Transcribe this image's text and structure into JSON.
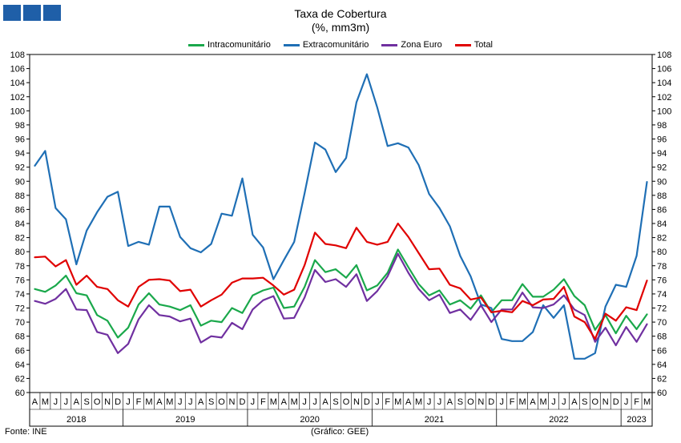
{
  "colors": {
    "logo": "#1f5fa8"
  },
  "chart_data": {
    "type": "line",
    "title": "Taxa de Cobertura",
    "subtitle": "(%, mm3m)",
    "source": "Fonte: INE",
    "credit": "(Gráfico: GEE)",
    "ylim": [
      60,
      108
    ],
    "yticks": [
      60,
      62,
      64,
      66,
      68,
      70,
      72,
      74,
      76,
      78,
      80,
      82,
      84,
      86,
      88,
      90,
      92,
      94,
      96,
      98,
      100,
      102,
      104,
      106,
      108
    ],
    "grid": false,
    "legend": "top-center",
    "months": [
      "A",
      "M",
      "J",
      "J",
      "A",
      "S",
      "O",
      "N",
      "D",
      "J",
      "F",
      "M",
      "A",
      "M",
      "J",
      "J",
      "A",
      "S",
      "O",
      "N",
      "D",
      "J",
      "F",
      "M",
      "A",
      "M",
      "J",
      "J",
      "A",
      "S",
      "O",
      "N",
      "D",
      "J",
      "F",
      "M",
      "A",
      "M",
      "J",
      "J",
      "A",
      "S",
      "O",
      "N",
      "D",
      "J",
      "F",
      "M",
      "A",
      "M",
      "J",
      "J",
      "A",
      "S",
      "O",
      "N",
      "D",
      "J",
      "F",
      "M"
    ],
    "years": [
      {
        "label": "2018",
        "start": 0,
        "end": 8
      },
      {
        "label": "2019",
        "start": 9,
        "end": 20
      },
      {
        "label": "2020",
        "start": 21,
        "end": 32
      },
      {
        "label": "2021",
        "start": 33,
        "end": 44
      },
      {
        "label": "2022",
        "start": 45,
        "end": 56
      },
      {
        "label": "2023",
        "start": 57,
        "end": 59
      }
    ],
    "series": [
      {
        "name": "Intracomunitário",
        "color": "#1aa84b",
        "values": [
          74.7,
          74.3,
          75.2,
          76.6,
          74.1,
          73.8,
          71.0,
          70.2,
          67.8,
          69.2,
          72.5,
          74.1,
          72.5,
          72.2,
          71.7,
          72.4,
          69.5,
          70.2,
          70.0,
          72.0,
          71.3,
          73.8,
          74.5,
          74.9,
          72.0,
          72.2,
          75.0,
          78.8,
          77.1,
          77.5,
          76.3,
          78.1,
          74.5,
          75.2,
          77.0,
          80.3,
          77.8,
          75.4,
          73.8,
          74.5,
          72.5,
          73.1,
          71.9,
          73.8,
          71.4,
          73.1,
          73.1,
          75.4,
          73.6,
          73.6,
          74.6,
          76.1,
          73.7,
          72.4,
          68.9,
          71.0,
          68.4,
          70.9,
          69.0,
          71.1
        ]
      },
      {
        "name": "Extracomunitário",
        "color": "#1f6fb5",
        "values": [
          92.2,
          94.3,
          86.2,
          84.6,
          78.2,
          83.0,
          85.6,
          87.8,
          88.5,
          80.8,
          81.4,
          81.0,
          86.4,
          86.4,
          82.1,
          80.5,
          79.9,
          81.1,
          85.4,
          85.1,
          90.4,
          82.4,
          80.6,
          76.1,
          78.8,
          81.4,
          88.3,
          95.5,
          94.5,
          91.3,
          93.3,
          101.2,
          105.2,
          100.5,
          95.0,
          95.4,
          94.8,
          92.3,
          88.2,
          86.2,
          83.6,
          79.4,
          76.5,
          72.5,
          72.0,
          67.6,
          67.3,
          67.3,
          68.6,
          72.4,
          70.6,
          72.4,
          64.8,
          64.8,
          65.6,
          72.2,
          75.3,
          75.0,
          79.4,
          89.9
        ]
      },
      {
        "name": "Zona Euro",
        "color": "#7030a0",
        "values": [
          73.0,
          72.6,
          73.3,
          74.7,
          71.8,
          71.7,
          68.6,
          68.2,
          65.6,
          66.9,
          70.4,
          72.4,
          71.0,
          70.8,
          70.1,
          70.5,
          67.1,
          68.0,
          67.8,
          69.9,
          69.0,
          71.8,
          73.1,
          73.7,
          70.5,
          70.6,
          73.5,
          77.4,
          75.7,
          76.1,
          75.0,
          76.8,
          73.0,
          74.4,
          76.5,
          79.7,
          77.0,
          74.7,
          73.1,
          73.9,
          71.3,
          71.8,
          70.3,
          72.4,
          70.0,
          71.8,
          71.8,
          74.2,
          72.1,
          72.0,
          72.5,
          73.8,
          71.8,
          71.0,
          67.2,
          69.2,
          66.7,
          69.3,
          67.2,
          69.7
        ]
      },
      {
        "name": "Total",
        "color": "#e00000",
        "values": [
          79.2,
          79.3,
          77.9,
          78.8,
          75.3,
          76.6,
          75.0,
          74.7,
          73.1,
          72.2,
          75.0,
          76.0,
          76.1,
          75.9,
          74.4,
          74.6,
          72.2,
          73.1,
          73.9,
          75.6,
          76.2,
          76.2,
          76.3,
          75.2,
          73.9,
          74.6,
          78.1,
          82.7,
          81.1,
          80.9,
          80.5,
          83.4,
          81.4,
          81.0,
          81.4,
          84.0,
          82.1,
          79.8,
          77.5,
          77.6,
          75.3,
          74.8,
          73.2,
          73.5,
          71.4,
          71.6,
          71.4,
          73.0,
          72.4,
          73.2,
          73.3,
          75.0,
          70.8,
          70.0,
          67.6,
          71.2,
          70.2,
          72.1,
          71.7,
          75.9
        ]
      }
    ]
  }
}
